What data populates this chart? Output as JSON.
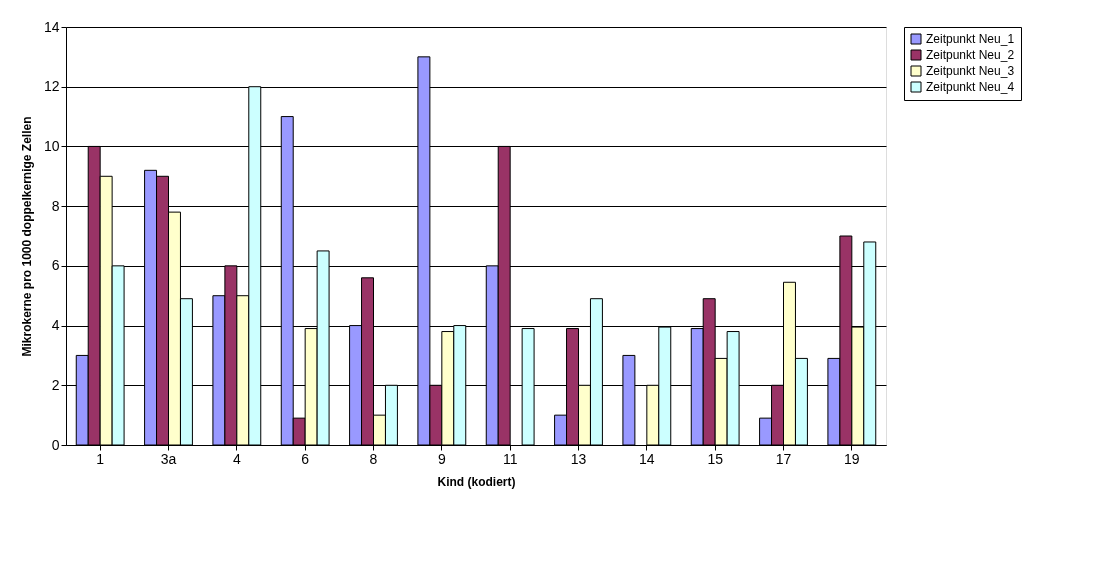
{
  "chart_data": {
    "type": "bar",
    "xlabel": "Kind (kodiert)",
    "ylabel": "Mikrokerne pro 1000 doppelkernige Zellen",
    "categories": [
      "1",
      "3a",
      "4",
      "6",
      "8",
      "9",
      "11",
      "13",
      "14",
      "15",
      "17",
      "19"
    ],
    "series": [
      {
        "name": "Zeitpunkt Neu_1",
        "color": "#9999ff",
        "values": [
          3,
          9.2,
          5,
          11,
          4,
          13,
          6,
          1,
          3,
          3.9,
          0.9,
          2.9
        ]
      },
      {
        "name": "Zeitpunkt Neu_2",
        "color": "#993366",
        "values": [
          10,
          9,
          6,
          0.9,
          5.6,
          2,
          10,
          3.9,
          null,
          4.9,
          2,
          7
        ]
      },
      {
        "name": "Zeitpunkt Neu_3",
        "color": "#ffffcc",
        "values": [
          9,
          7.8,
          5,
          3.9,
          1,
          3.8,
          null,
          2,
          2,
          2.9,
          5.45,
          3.95
        ]
      },
      {
        "name": "Zeitpunkt Neu_4",
        "color": "#ccffff",
        "values": [
          6,
          4.9,
          12,
          6.5,
          2,
          4,
          3.9,
          4.9,
          3.95,
          3.8,
          2.9,
          6.8
        ]
      }
    ],
    "ylim": [
      0,
      14
    ],
    "yticks": [
      0,
      2,
      4,
      6,
      8,
      10,
      12,
      14
    ],
    "grid": "y",
    "legend": "right"
  }
}
